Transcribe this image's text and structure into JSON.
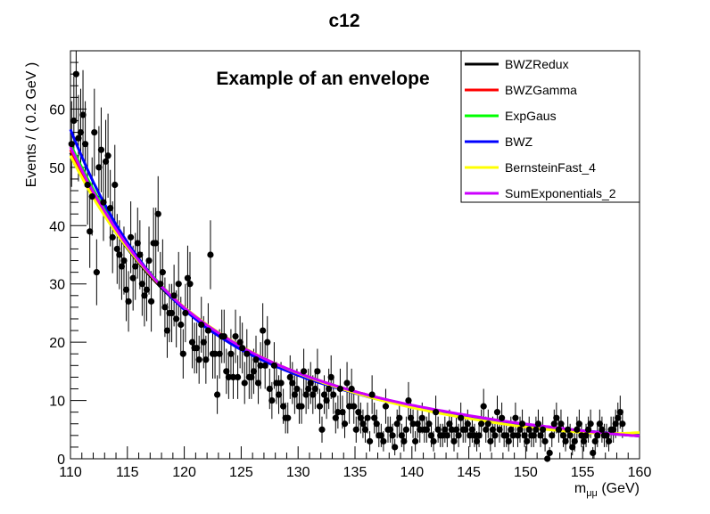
{
  "chart_data": {
    "type": "scatter",
    "title": "c12",
    "annotation": "Example of an envelope",
    "xlabel": "m_{μμ} (GeV)",
    "xlabel_main": "m",
    "xlabel_sub": "μμ",
    "xlabel_unit": "(GeV)",
    "ylabel": "Events / ( 0.2 GeV )",
    "xlim": [
      110,
      160
    ],
    "ylim": [
      0,
      70
    ],
    "grid": false,
    "legend_position": "top-right",
    "x_ticks": [
      110,
      115,
      120,
      125,
      130,
      135,
      140,
      145,
      150,
      155,
      160
    ],
    "y_ticks": [
      0,
      10,
      20,
      30,
      40,
      50,
      60
    ],
    "data_points": {
      "name": "data",
      "color": "#000000",
      "x_start": 110.1,
      "bin_width": 0.2,
      "values": [
        54,
        58,
        66,
        55,
        56,
        59,
        54,
        47,
        39,
        45,
        56,
        32,
        50,
        53,
        44,
        51,
        52,
        43,
        38,
        47,
        36,
        35,
        33,
        34,
        29,
        27,
        38,
        31,
        33,
        37,
        35,
        30,
        28,
        29,
        34,
        27,
        37,
        37,
        42,
        30,
        32,
        26,
        22,
        25,
        25,
        28,
        24,
        30,
        23,
        18,
        25,
        31,
        30,
        20,
        19,
        19,
        17,
        23,
        20,
        17,
        22,
        35,
        18,
        18,
        11,
        18,
        21,
        21,
        15,
        14,
        18,
        14,
        21,
        14,
        20,
        19,
        13,
        18,
        14,
        14,
        15,
        17,
        13,
        16,
        22,
        16,
        20,
        12,
        10,
        16,
        13,
        11,
        13,
        9,
        7,
        7,
        14,
        13,
        11,
        12,
        9,
        9,
        15,
        11,
        12,
        13,
        11,
        12,
        15,
        9,
        5,
        11,
        10,
        12,
        14,
        11,
        7,
        8,
        12,
        8,
        6,
        13,
        9,
        12,
        9,
        5,
        8,
        7,
        6,
        5,
        7,
        3,
        11,
        7,
        6,
        4,
        4,
        3,
        9,
        5,
        5,
        4,
        2,
        6,
        7,
        4,
        3,
        5,
        10,
        7,
        6,
        3,
        6,
        5,
        7,
        5,
        5,
        6,
        4,
        3,
        8,
        5,
        4,
        4,
        5,
        4,
        6,
        5,
        3,
        5,
        4,
        7,
        5,
        5,
        6,
        4,
        5,
        4,
        3,
        4,
        6,
        9,
        5,
        6,
        3,
        5,
        4,
        8,
        5,
        7,
        4,
        4,
        3,
        5,
        4,
        7,
        4,
        5,
        6,
        4,
        3,
        5,
        4,
        4,
        5,
        6,
        4,
        5,
        3,
        0,
        1,
        4,
        6,
        7,
        5,
        6,
        4,
        3,
        5,
        4,
        2,
        3,
        5,
        6,
        4,
        3,
        4,
        5,
        6,
        1,
        3,
        4,
        6,
        5,
        4,
        4,
        3,
        5,
        5,
        6,
        7,
        8,
        6
      ]
    },
    "series": [
      {
        "name": "BWZRedux",
        "color": "#000000",
        "x": [
          110,
          112,
          114,
          116,
          118,
          120,
          122,
          125,
          128,
          131,
          134,
          137,
          140,
          143,
          146,
          149,
          152,
          155,
          158,
          160
        ],
        "values": [
          52.5,
          45.0,
          38.8,
          33.6,
          29.3,
          25.7,
          22.7,
          19.0,
          16.2,
          13.9,
          12.0,
          10.4,
          9.0,
          7.9,
          6.9,
          6.0,
          5.3,
          4.7,
          4.2,
          3.9
        ]
      },
      {
        "name": "BWZGamma",
        "color": "#ff0000",
        "x": [
          110,
          112,
          114,
          116,
          118,
          120,
          122,
          125,
          128,
          131,
          134,
          137,
          140,
          143,
          146,
          149,
          152,
          155,
          158,
          160
        ],
        "values": [
          53.0,
          45.4,
          39.1,
          33.9,
          29.5,
          25.9,
          22.9,
          19.2,
          16.3,
          14.0,
          12.1,
          10.5,
          9.1,
          8.0,
          7.0,
          6.1,
          5.4,
          4.8,
          4.3,
          4.0
        ]
      },
      {
        "name": "ExpGaus",
        "color": "#00ff00",
        "x": [
          110,
          112,
          114,
          116,
          118,
          120,
          122,
          125,
          128,
          131,
          134,
          137,
          140,
          143,
          146,
          149,
          152,
          155,
          158,
          160
        ],
        "values": [
          54.0,
          46.2,
          39.7,
          34.2,
          29.7,
          25.9,
          22.8,
          19.0,
          16.1,
          13.8,
          11.9,
          10.3,
          8.9,
          7.8,
          6.8,
          6.0,
          5.3,
          4.7,
          4.2,
          4.0
        ]
      },
      {
        "name": "BWZ",
        "color": "#0000ff",
        "x": [
          110,
          112,
          114,
          116,
          118,
          120,
          122,
          125,
          128,
          131,
          134,
          137,
          140,
          143,
          146,
          149,
          152,
          155,
          158,
          160
        ],
        "values": [
          56.5,
          47.5,
          40.2,
          34.3,
          29.5,
          25.6,
          22.4,
          18.7,
          15.9,
          13.6,
          11.8,
          10.2,
          8.9,
          7.8,
          6.9,
          6.1,
          5.4,
          4.8,
          4.3,
          4.0
        ]
      },
      {
        "name": "BernsteinFast_4",
        "color": "#ffff00",
        "x": [
          110,
          112,
          114,
          116,
          118,
          120,
          122,
          125,
          128,
          131,
          134,
          137,
          140,
          143,
          146,
          149,
          152,
          155,
          158,
          160
        ],
        "values": [
          52.0,
          44.8,
          38.8,
          33.8,
          29.6,
          26.0,
          23.0,
          19.3,
          16.3,
          13.9,
          11.9,
          10.2,
          8.8,
          7.6,
          6.6,
          5.7,
          5.0,
          4.5,
          4.3,
          4.5
        ]
      },
      {
        "name": "SumExponentials_2",
        "color": "#cc00ff",
        "x": [
          110,
          112,
          114,
          116,
          118,
          120,
          122,
          125,
          128,
          131,
          134,
          137,
          140,
          143,
          146,
          149,
          152,
          155,
          158,
          160
        ],
        "values": [
          53.5,
          45.8,
          39.4,
          34.0,
          29.6,
          25.9,
          22.9,
          19.2,
          16.3,
          14.0,
          12.1,
          10.5,
          9.2,
          8.1,
          7.1,
          6.2,
          5.5,
          4.8,
          4.2,
          3.9
        ]
      }
    ]
  }
}
